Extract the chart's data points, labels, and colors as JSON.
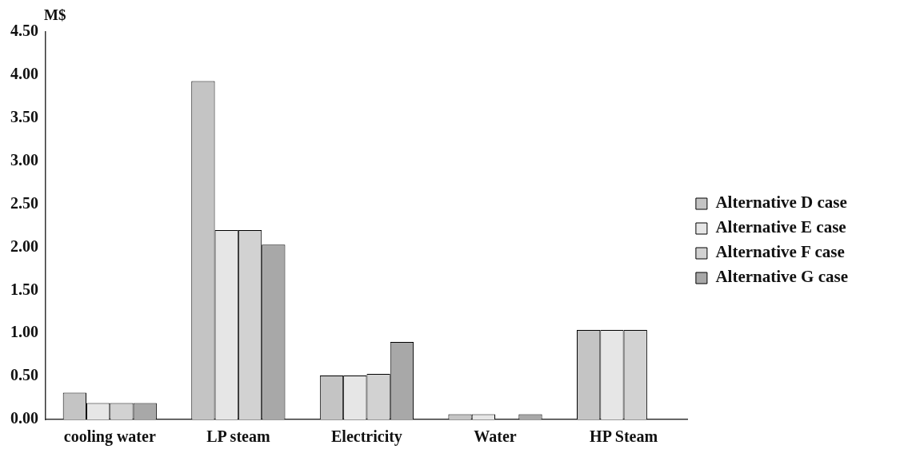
{
  "chart_data": {
    "type": "bar",
    "ylabel": "M$",
    "categories": [
      "cooling water",
      "LP steam",
      "Electricity",
      "Water",
      "HP Steam"
    ],
    "series": [
      {
        "name": "Alternative D case",
        "color": "#c4c4c4",
        "values": [
          0.31,
          3.93,
          0.51,
          0.06,
          1.04
        ]
      },
      {
        "name": "Alternative E case",
        "color": "#e6e6e6",
        "values": [
          0.19,
          2.2,
          0.51,
          0.06,
          1.04
        ]
      },
      {
        "name": "Alternative F case",
        "color": "#d2d2d2",
        "values": [
          0.19,
          2.2,
          0.53,
          null,
          1.04
        ]
      },
      {
        "name": "Alternative G case",
        "color": "#a8a8a8",
        "values": [
          0.19,
          2.03,
          0.9,
          0.06,
          null
        ]
      }
    ],
    "ylim": [
      0,
      4.5
    ],
    "yticks": [
      {
        "value": 0,
        "label": "0.00"
      },
      {
        "value": 0.5,
        "label": "0.50"
      },
      {
        "value": 1,
        "label": "1.00"
      },
      {
        "value": 1.5,
        "label": "1.50"
      },
      {
        "value": 2,
        "label": "2.00"
      },
      {
        "value": 2.5,
        "label": "2.50"
      },
      {
        "value": 3,
        "label": "3.00"
      },
      {
        "value": 3.5,
        "label": "3.50"
      },
      {
        "value": 4,
        "label": "4.00"
      },
      {
        "value": 4.5,
        "label": "4.50"
      }
    ],
    "grid": false,
    "legend": "right"
  }
}
